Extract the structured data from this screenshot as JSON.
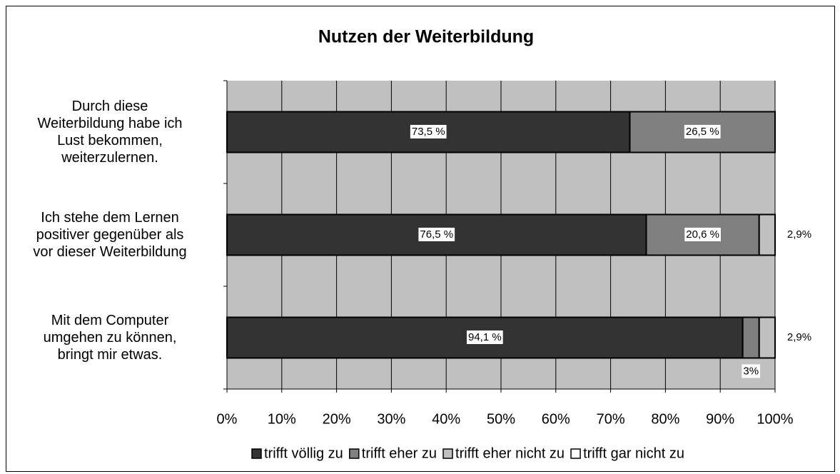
{
  "chart_data": {
    "type": "stacked_bar_horizontal",
    "title": "Nutzen der Weiterbildung",
    "categories": [
      "Durch diese\nWeiterbildung habe ich\nLust bekommen,\nweiterzulernen.",
      "Ich stehe dem Lernen\npositiver gegenüber als\nvor dieser Weiterbildung",
      "Mit dem Computer\numgehen zu können,\nbringt mir etwas."
    ],
    "series": [
      {
        "name": "trifft völlig zu",
        "color": "#333333",
        "values": [
          73.5,
          76.5,
          94.1
        ],
        "value_labels": [
          "73,5 %",
          "76,5 %",
          "94,1 %"
        ]
      },
      {
        "name": "trifft eher zu",
        "color": "#808080",
        "values": [
          26.5,
          20.6,
          3
        ],
        "value_labels": [
          "26,5 %",
          "20,6 %",
          "3%"
        ]
      },
      {
        "name": "trifft eher nicht zu",
        "color": "#c0c0c0",
        "values": [
          0,
          2.9,
          2.9
        ],
        "value_labels": [
          null,
          "2,9%",
          "2,9%"
        ]
      },
      {
        "name": "trifft gar nicht zu",
        "color": "#ffffff",
        "values": [
          0,
          0,
          0
        ],
        "value_labels": [
          null,
          null,
          null
        ]
      }
    ],
    "xlim": [
      0,
      100
    ],
    "xticks": [
      {
        "value": 0,
        "label": "0%"
      },
      {
        "value": 10,
        "label": "10%"
      },
      {
        "value": 20,
        "label": "20%"
      },
      {
        "value": 30,
        "label": "30%"
      },
      {
        "value": 40,
        "label": "40%"
      },
      {
        "value": 50,
        "label": "50%"
      },
      {
        "value": 60,
        "label": "60%"
      },
      {
        "value": 70,
        "label": "70%"
      },
      {
        "value": 80,
        "label": "80%"
      },
      {
        "value": 90,
        "label": "90%"
      },
      {
        "value": 100,
        "label": "100%"
      }
    ],
    "grid": true,
    "plot_background": "#c0c0c0",
    "legend": "bottom"
  }
}
